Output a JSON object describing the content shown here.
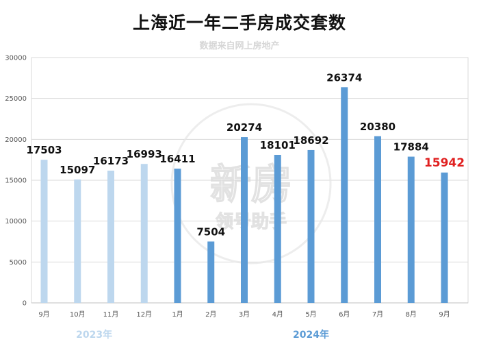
{
  "chart_data": {
    "type": "bar",
    "title": "上海近一年二手房成交套数",
    "subtitle": "数据来自网上房地产",
    "categories": [
      "9月",
      "10月",
      "11月",
      "12月",
      "1月",
      "2月",
      "3月",
      "4月",
      "5月",
      "6月",
      "7月",
      "8月",
      "9月"
    ],
    "values": [
      17503,
      15097,
      16173,
      16993,
      16411,
      7504,
      20274,
      18101,
      18692,
      26374,
      20380,
      17884,
      15942
    ],
    "year_groups": [
      {
        "label": "2023年",
        "start": 0,
        "end": 3,
        "color": "#bdd7ee"
      },
      {
        "label": "2024年",
        "start": 4,
        "end": 12,
        "color": "#5b9bd5"
      }
    ],
    "highlight_index": 12,
    "highlight_color": "#e02020",
    "label_color": "#111111",
    "ylim": [
      0,
      30000
    ],
    "yticks": [
      0,
      5000,
      10000,
      15000,
      20000,
      25000,
      30000
    ],
    "grid": true,
    "watermark": [
      "新房",
      "领号助手"
    ]
  }
}
